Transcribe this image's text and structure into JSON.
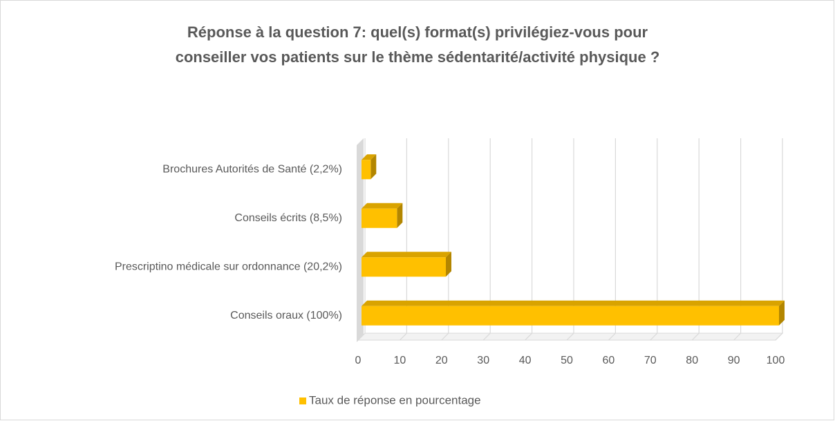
{
  "chart_data": {
    "type": "bar",
    "orientation": "horizontal",
    "title": [
      "Réponse à la question 7: quel(s) format(s) privilégiez-vous pour",
      "conseiller vos patients sur le thème sédentarité/activité physique ?"
    ],
    "categories": [
      "Brochures Autorités de Santé (2,2%)",
      "Conseils écrits (8,5%)",
      "Prescriptino médicale sur ordonnance (20,2%)",
      "Conseils oraux (100%)"
    ],
    "series": [
      {
        "name": "Taux de réponse en pourcentage",
        "color": "#ffc000",
        "values": [
          2.2,
          8.5,
          20.2,
          100
        ]
      }
    ],
    "xlim": [
      0,
      100
    ],
    "xticks": [
      0,
      10,
      20,
      30,
      40,
      50,
      60,
      70,
      80,
      90,
      100
    ],
    "grid": true,
    "legend": "bottom"
  }
}
